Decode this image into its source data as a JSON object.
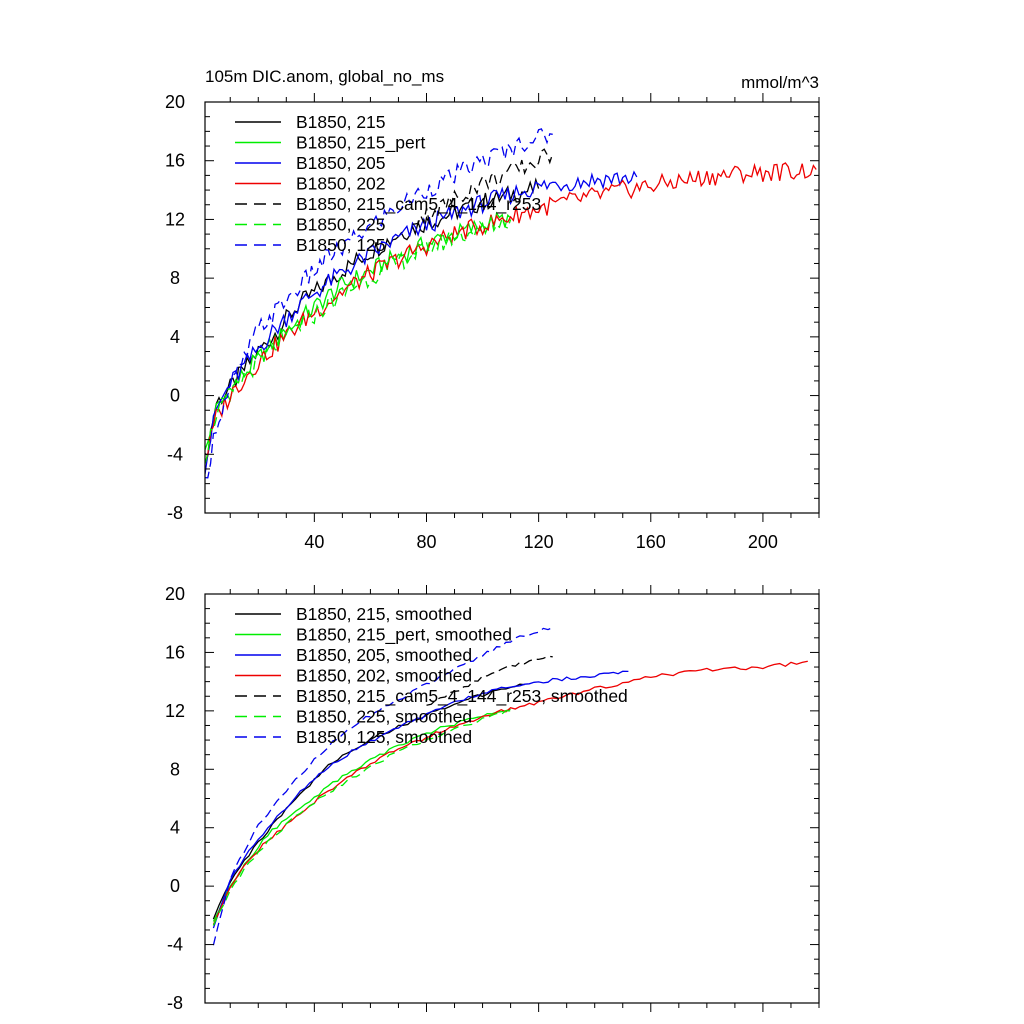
{
  "chart_data": [
    {
      "type": "line",
      "title": "105m DIC.anom, global_no_ms",
      "units": "mmol/m^3",
      "xlim": [
        1,
        220
      ],
      "ylim": [
        -8,
        20
      ],
      "xticks": [
        40,
        80,
        120,
        160,
        200
      ],
      "xtick_labels": [
        "40",
        "80",
        "120",
        "160",
        "200"
      ],
      "yticks": [
        -8,
        -4,
        0,
        4,
        8,
        12,
        16,
        20
      ],
      "ytick_labels": [
        "-8",
        "-4",
        "0",
        "4",
        "8",
        "12",
        "16",
        "20"
      ],
      "grid": false,
      "legend_position": "top-left",
      "series": [
        {
          "name": "B1850, 215",
          "color": "#000000",
          "dash": "solid",
          "x": [
            1,
            5,
            10,
            15,
            20,
            25,
            30,
            35,
            40,
            45,
            50,
            55,
            60,
            65,
            70,
            75,
            80,
            85,
            90,
            95,
            100,
            105,
            110,
            115,
            120
          ],
          "y": [
            -4.5,
            -0.5,
            0.5,
            1.8,
            3.0,
            4.0,
            5.2,
            6.3,
            7.0,
            7.8,
            8.5,
            9.2,
            9.8,
            10.4,
            11.0,
            11.4,
            11.8,
            12.1,
            12.5,
            12.8,
            13.2,
            13.4,
            13.7,
            13.9,
            14.1
          ]
        },
        {
          "name": "B1850, 215_pert",
          "color": "#00ee00",
          "dash": "solid",
          "x": [
            1,
            5,
            10,
            15,
            20,
            25,
            30,
            35,
            40,
            45,
            50,
            55,
            60,
            65,
            70,
            75,
            80,
            85,
            90,
            95,
            100,
            105,
            110
          ],
          "y": [
            -4.0,
            -1.0,
            0.3,
            1.5,
            2.5,
            3.5,
            4.4,
            5.2,
            6.0,
            6.8,
            7.5,
            8.0,
            8.5,
            9.0,
            9.5,
            9.9,
            10.3,
            10.7,
            11.0,
            11.3,
            11.6,
            11.9,
            12.1
          ]
        },
        {
          "name": "B1850, 205",
          "color": "#0000ee",
          "dash": "solid",
          "x": [
            1,
            5,
            10,
            15,
            20,
            25,
            30,
            35,
            40,
            45,
            50,
            55,
            60,
            65,
            70,
            75,
            80,
            85,
            90,
            95,
            100,
            105,
            110,
            115,
            120,
            125,
            130,
            135,
            140,
            145,
            150,
            155
          ],
          "y": [
            -4.8,
            -1.0,
            0.8,
            2.0,
            3.2,
            4.3,
            5.3,
            6.2,
            7.0,
            7.7,
            8.4,
            9.0,
            9.6,
            10.2,
            10.7,
            11.2,
            11.6,
            12.0,
            12.4,
            12.8,
            13.1,
            13.4,
            13.7,
            14.0,
            14.2,
            14.4,
            14.5,
            14.6,
            14.7,
            14.8,
            14.8,
            14.9
          ]
        },
        {
          "name": "B1850, 202",
          "color": "#ee0000",
          "dash": "solid",
          "x": [
            1,
            5,
            10,
            15,
            20,
            25,
            30,
            35,
            40,
            45,
            50,
            55,
            60,
            65,
            70,
            75,
            80,
            85,
            90,
            95,
            100,
            105,
            110,
            115,
            120,
            125,
            130,
            140,
            150,
            160,
            170,
            180,
            190,
            200,
            210,
            219
          ],
          "y": [
            -4.5,
            -1.5,
            0.0,
            1.2,
            2.3,
            3.2,
            4.1,
            4.9,
            5.7,
            6.4,
            7.1,
            7.7,
            8.3,
            8.8,
            9.3,
            9.8,
            10.2,
            10.6,
            11.0,
            11.3,
            11.6,
            11.9,
            12.2,
            12.5,
            12.7,
            13.0,
            13.2,
            13.6,
            14.0,
            14.3,
            14.6,
            14.9,
            15.1,
            15.2,
            15.3,
            15.4
          ]
        },
        {
          "name": "B1850, 215_cam5_4_144_r253",
          "color": "#000000",
          "dash": "dashed",
          "x": [
            75,
            80,
            85,
            90,
            95,
            100,
            105,
            110,
            115,
            120,
            125
          ],
          "y": [
            12.0,
            12.3,
            12.8,
            13.4,
            14.0,
            14.5,
            14.8,
            15.2,
            15.6,
            16.0,
            16.5
          ]
        },
        {
          "name": "B1850, 225",
          "color": "#00ee00",
          "dash": "dashed",
          "x": [
            1,
            5,
            10,
            15,
            20,
            25,
            30,
            35,
            40,
            45,
            50,
            55,
            60,
            65,
            70,
            75,
            80,
            85,
            90,
            95,
            100,
            105,
            110
          ],
          "y": [
            -4.2,
            -1.2,
            0.0,
            1.3,
            2.3,
            3.2,
            4.0,
            4.8,
            5.5,
            6.2,
            6.9,
            7.5,
            8.1,
            8.6,
            9.1,
            9.6,
            10.0,
            10.4,
            10.8,
            11.1,
            11.4,
            11.7,
            12.0
          ]
        },
        {
          "name": "B1850, 125",
          "color": "#0000ee",
          "dash": "dashed",
          "x": [
            1,
            5,
            10,
            15,
            20,
            25,
            30,
            35,
            40,
            45,
            50,
            55,
            60,
            65,
            70,
            75,
            80,
            85,
            90,
            95,
            100,
            105,
            110,
            115,
            120,
            125
          ],
          "y": [
            -6.0,
            -2.0,
            0.5,
            2.5,
            4.5,
            5.5,
            6.5,
            7.5,
            8.5,
            9.5,
            10.0,
            10.8,
            11.5,
            12.2,
            12.8,
            13.5,
            14.0,
            14.5,
            15.0,
            15.5,
            16.0,
            16.4,
            16.8,
            17.3,
            17.6,
            17.8
          ]
        }
      ]
    },
    {
      "type": "line",
      "title": "",
      "units": "",
      "xlim": [
        1,
        220
      ],
      "ylim": [
        -8,
        20
      ],
      "xticks": [
        40,
        80,
        120,
        160,
        200
      ],
      "xtick_labels": [],
      "yticks": [
        -8,
        -4,
        0,
        4,
        8,
        12,
        16,
        20
      ],
      "ytick_labels": [
        "-8",
        "-4",
        "0",
        "4",
        "8",
        "12",
        "16",
        "20"
      ],
      "grid": false,
      "legend_position": "top-left",
      "series": [
        {
          "name": "B1850, 215, smoothed",
          "color": "#000000",
          "dash": "solid",
          "x": [
            4,
            10,
            15,
            20,
            25,
            30,
            35,
            40,
            45,
            50,
            55,
            60,
            65,
            70,
            75,
            80,
            85,
            90,
            95,
            100,
            105,
            110,
            115
          ],
          "y": [
            -2.2,
            0.3,
            1.7,
            3.0,
            4.2,
            5.3,
            6.3,
            7.3,
            8.2,
            8.9,
            9.5,
            10.1,
            10.5,
            10.9,
            11.3,
            11.7,
            12.1,
            12.5,
            12.8,
            13.1,
            13.4,
            13.6,
            13.8
          ]
        },
        {
          "name": "B1850, 215_pert, smoothed",
          "color": "#00ee00",
          "dash": "solid",
          "x": [
            4,
            10,
            15,
            20,
            25,
            30,
            35,
            40,
            45,
            50,
            55,
            60,
            65,
            70,
            75,
            80,
            85,
            90,
            95,
            100,
            105,
            110
          ],
          "y": [
            -2.5,
            0.0,
            1.4,
            2.7,
            3.8,
            4.6,
            5.4,
            6.1,
            6.8,
            7.5,
            8.1,
            8.6,
            9.1,
            9.6,
            10.0,
            10.4,
            10.8,
            11.1,
            11.4,
            11.7,
            11.9,
            12.1
          ]
        },
        {
          "name": "B1850, 205, smoothed",
          "color": "#0000ee",
          "dash": "solid",
          "x": [
            4,
            10,
            15,
            20,
            25,
            30,
            35,
            40,
            45,
            50,
            55,
            60,
            65,
            70,
            75,
            80,
            85,
            90,
            95,
            100,
            105,
            110,
            115,
            120,
            125,
            130,
            135,
            140,
            145,
            150,
            152
          ],
          "y": [
            -2.8,
            0.5,
            1.9,
            3.2,
            4.4,
            5.4,
            6.4,
            7.3,
            8.1,
            8.8,
            9.4,
            9.9,
            10.4,
            10.9,
            11.3,
            11.7,
            12.2,
            12.6,
            12.9,
            13.2,
            13.5,
            13.7,
            13.8,
            14.0,
            14.1,
            14.2,
            14.3,
            14.4,
            14.5,
            14.6,
            14.7
          ]
        },
        {
          "name": "B1850, 202, smoothed",
          "color": "#ee0000",
          "dash": "solid",
          "x": [
            4,
            10,
            15,
            20,
            25,
            30,
            35,
            40,
            45,
            50,
            55,
            60,
            65,
            70,
            75,
            80,
            85,
            90,
            95,
            100,
            105,
            110,
            115,
            120,
            125,
            130,
            140,
            150,
            160,
            170,
            180,
            190,
            200,
            210,
            216
          ],
          "y": [
            -2.6,
            0.0,
            1.3,
            2.5,
            3.4,
            4.2,
            5.0,
            5.8,
            6.5,
            7.2,
            7.8,
            8.4,
            8.9,
            9.4,
            9.8,
            10.2,
            10.6,
            11.0,
            11.3,
            11.6,
            11.9,
            12.1,
            12.4,
            12.6,
            12.8,
            13.0,
            13.5,
            13.9,
            14.3,
            14.6,
            14.8,
            14.9,
            15.0,
            15.2,
            15.4
          ]
        },
        {
          "name": "B1850, 215_cam5_4_144_r253, smoothed",
          "color": "#000000",
          "dash": "dashed",
          "x": [
            80,
            85,
            90,
            95,
            100,
            105,
            110,
            115,
            120,
            125
          ],
          "y": [
            12.3,
            12.8,
            13.3,
            13.8,
            14.3,
            14.7,
            15.0,
            15.3,
            15.5,
            15.7
          ]
        },
        {
          "name": "B1850, 225, smoothed",
          "color": "#00ee00",
          "dash": "dashed",
          "x": [
            4,
            10,
            15,
            20,
            25,
            30,
            35,
            40,
            45,
            50,
            55,
            60,
            65,
            70,
            75,
            80,
            85,
            90,
            95,
            100,
            105,
            110
          ],
          "y": [
            -2.7,
            -0.2,
            1.1,
            2.3,
            3.3,
            4.2,
            5.0,
            5.7,
            6.4,
            7.0,
            7.6,
            8.2,
            8.7,
            9.2,
            9.6,
            10.0,
            10.4,
            10.8,
            11.1,
            11.4,
            11.7,
            12.0
          ]
        },
        {
          "name": "B1850, 125, smoothed",
          "color": "#0000ee",
          "dash": "dashed",
          "x": [
            4,
            10,
            15,
            20,
            25,
            30,
            35,
            40,
            45,
            50,
            55,
            60,
            65,
            70,
            75,
            80,
            85,
            90,
            95,
            100,
            105,
            110,
            115,
            120,
            125
          ],
          "y": [
            -4.0,
            0.5,
            2.4,
            4.2,
            5.4,
            6.5,
            7.6,
            8.7,
            9.6,
            10.4,
            11.1,
            11.7,
            12.3,
            12.8,
            13.3,
            13.8,
            14.3,
            14.8,
            15.3,
            15.8,
            16.3,
            16.8,
            17.2,
            17.5,
            17.7
          ]
        }
      ]
    }
  ]
}
